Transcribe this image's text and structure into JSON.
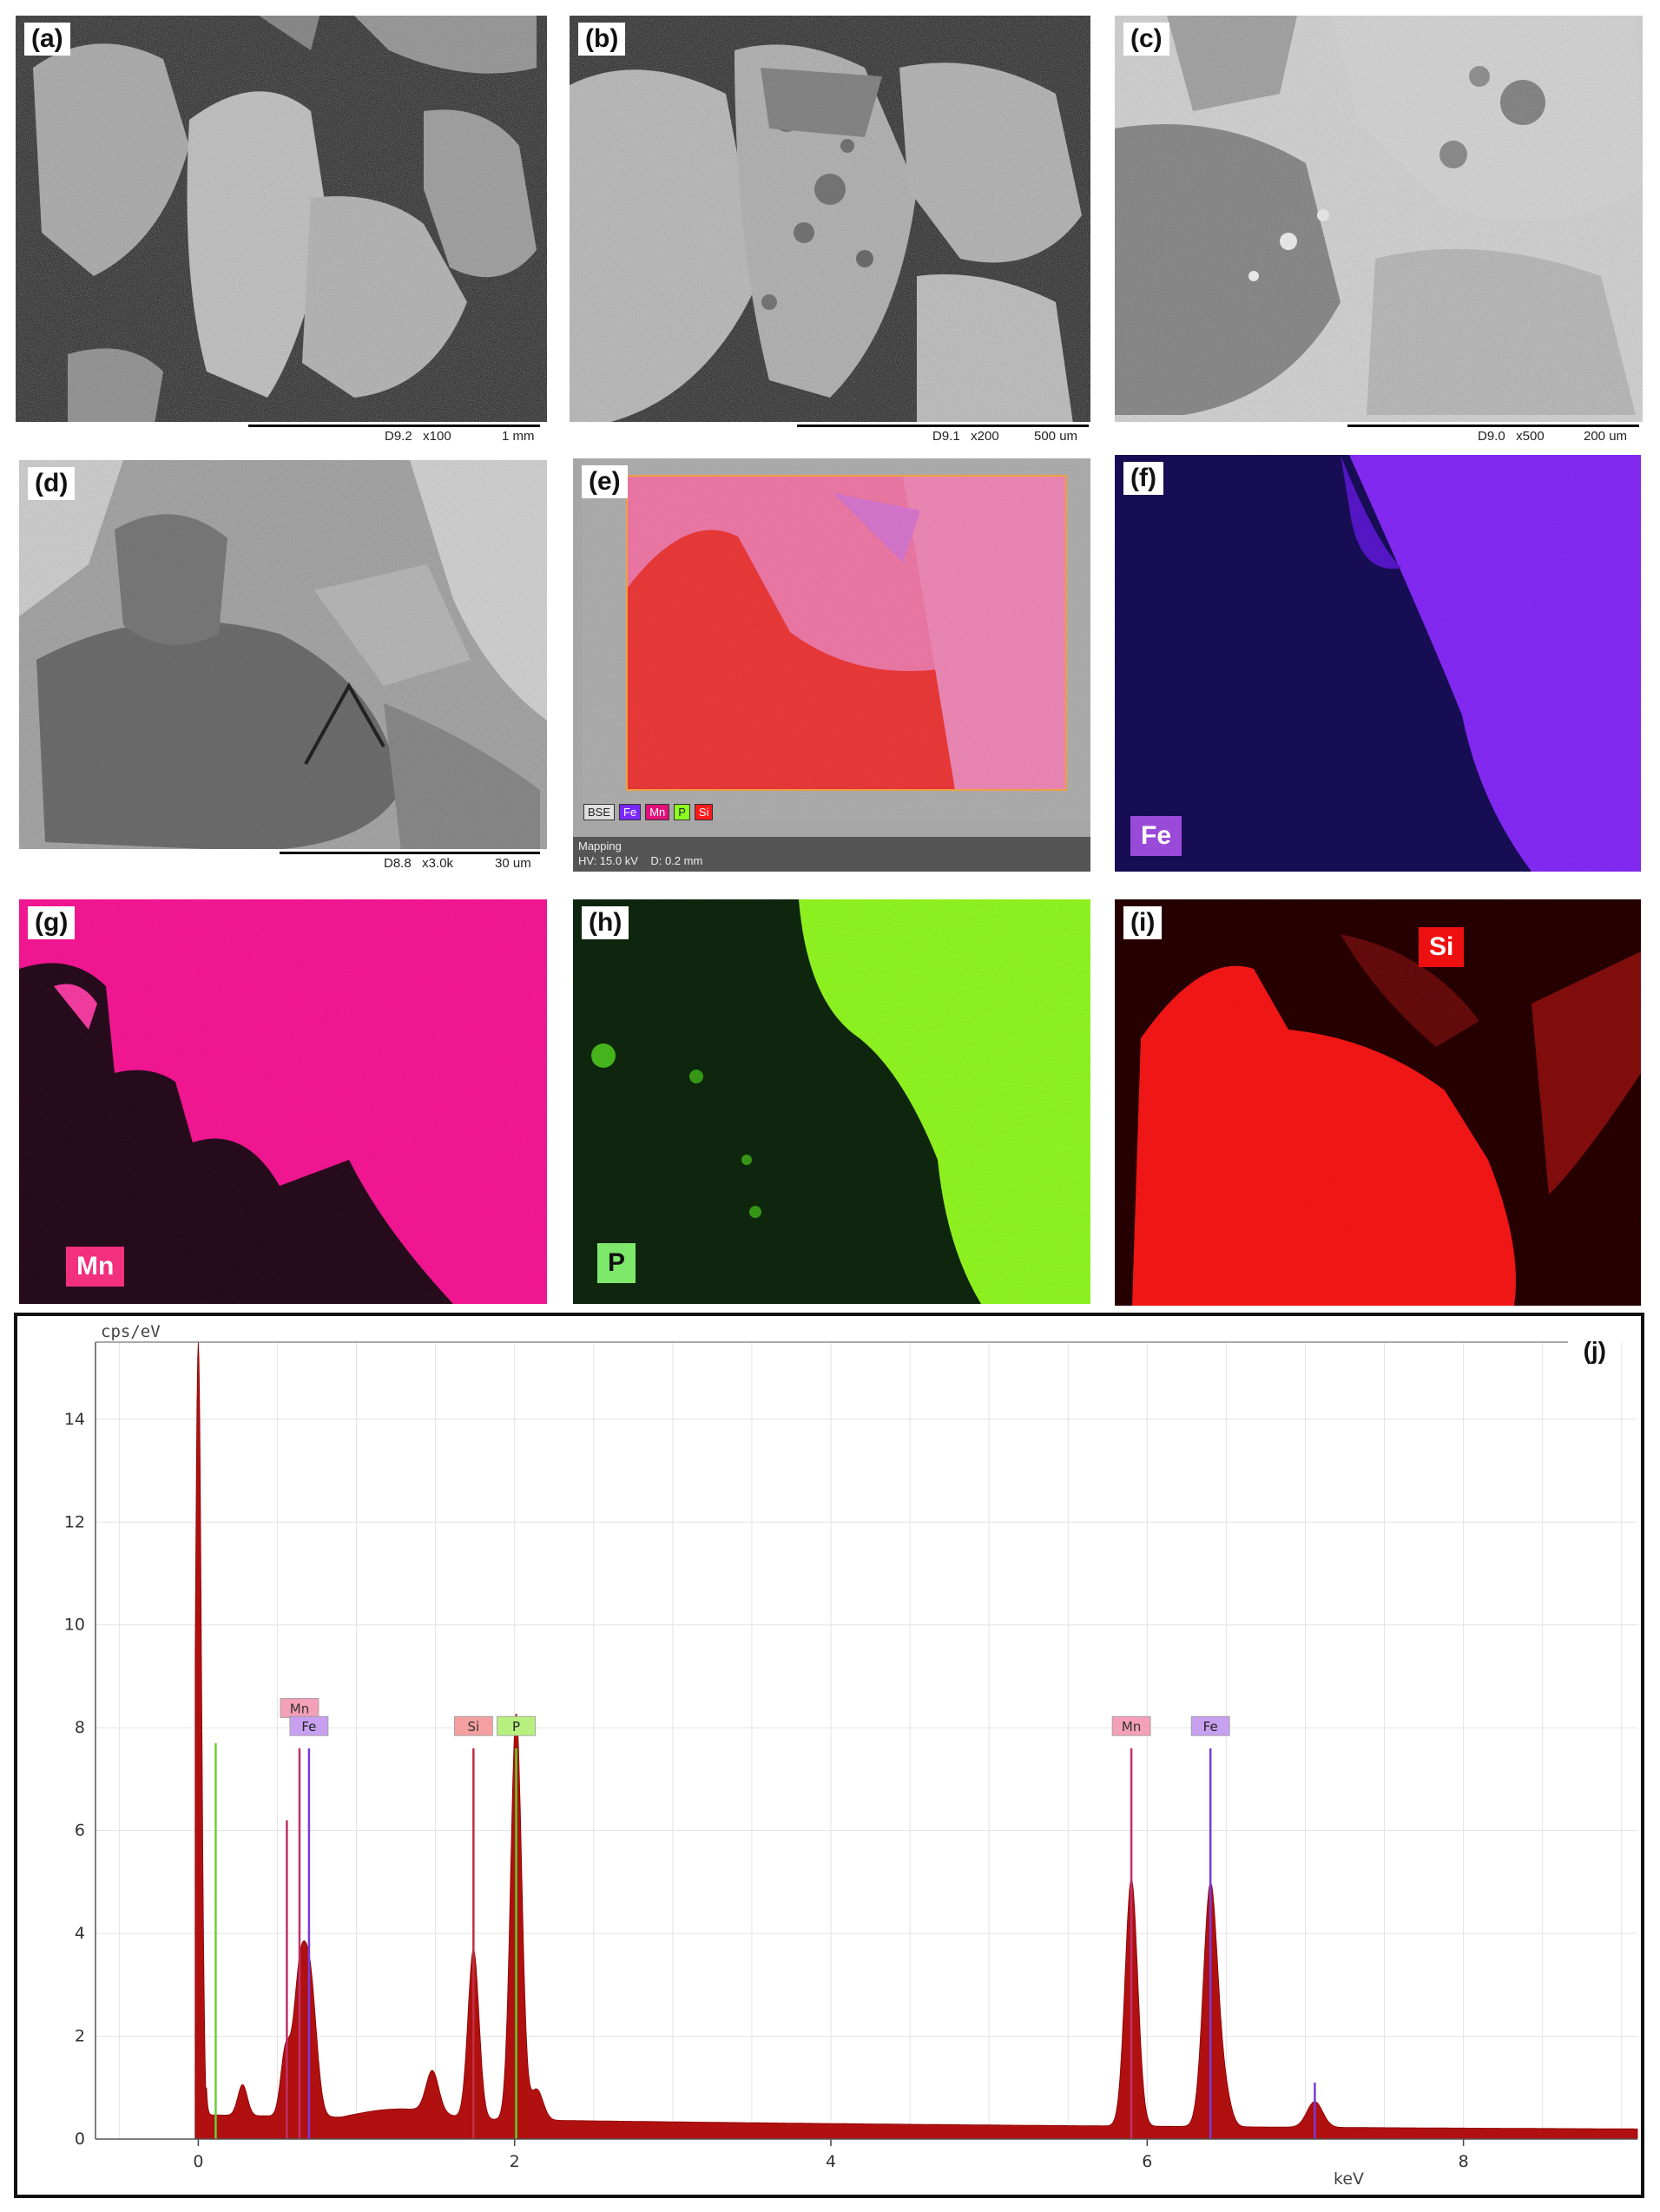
{
  "panels": {
    "a": {
      "label": "(a)",
      "scale_text": "D9.2   x100",
      "scale_len": "1 mm"
    },
    "b": {
      "label": "(b)",
      "scale_text": "D9.1   x200",
      "scale_len": "500 um"
    },
    "c": {
      "label": "(c)",
      "scale_text": "D9.0   x500",
      "scale_len": "200 um"
    },
    "d": {
      "label": "(d)",
      "scale_text": "D8.8   x3.0k",
      "scale_len": "30 um"
    },
    "e": {
      "label": "(e)",
      "legend": [
        "BSE",
        "Fe",
        "Mn",
        "P",
        "Si"
      ],
      "mapping": "Mapping",
      "params": "HV: 15.0 kV    D: 0.2 mm"
    },
    "f": {
      "label": "(f)",
      "element": "Fe",
      "color": "#7a28ff"
    },
    "g": {
      "label": "(g)",
      "element": "Mn",
      "color": "#ff1493"
    },
    "h": {
      "label": "(h)",
      "element": "P",
      "color": "#8cff1e"
    },
    "i": {
      "label": "(i)",
      "element": "Si",
      "color": "#ff1a1a"
    },
    "j": {
      "label": "(j)"
    }
  },
  "chart_data": {
    "type": "area",
    "ylabel": "cps/eV",
    "xlabel": "keV",
    "xlim": [
      -0.65,
      9.1
    ],
    "ylim": [
      0,
      15.5
    ],
    "xticks": [
      0,
      2,
      4,
      6,
      8
    ],
    "yticks": [
      0,
      2,
      4,
      6,
      8,
      10,
      12,
      14
    ],
    "grid": true,
    "series_color": "#b01010",
    "peaks": [
      {
        "x": 0.0,
        "y": 15.5,
        "w": 0.02
      },
      {
        "x": 0.28,
        "y": 0.6,
        "w": 0.03
      },
      {
        "x": 0.55,
        "y": 1.2,
        "w": 0.03
      },
      {
        "x": 0.64,
        "y": 2.6,
        "w": 0.04
      },
      {
        "x": 0.71,
        "y": 2.4,
        "w": 0.04
      },
      {
        "x": 1.48,
        "y": 0.8,
        "w": 0.04
      },
      {
        "x": 1.74,
        "y": 3.3,
        "w": 0.035
      },
      {
        "x": 2.01,
        "y": 7.9,
        "w": 0.035
      },
      {
        "x": 2.14,
        "y": 0.6,
        "w": 0.04
      },
      {
        "x": 5.9,
        "y": 4.8,
        "w": 0.04
      },
      {
        "x": 6.49,
        "y": 0.6,
        "w": 0.04
      },
      {
        "x": 6.4,
        "y": 4.7,
        "w": 0.045
      },
      {
        "x": 7.06,
        "y": 0.5,
        "w": 0.05
      }
    ],
    "markers": [
      {
        "element": "Mn",
        "x": 0.56,
        "h": 6.2,
        "color": "#c0306a",
        "labeled": false
      },
      {
        "element": "Mn",
        "x": 0.64,
        "h": 7.6,
        "color": "#c0306a",
        "labeled": true,
        "label_y": 8.35
      },
      {
        "element": "Fe",
        "x": 0.7,
        "h": 7.6,
        "color": "#7a3ad8",
        "labeled": true,
        "label_y": 8.0
      },
      {
        "element": "Si",
        "x": 1.74,
        "h": 7.6,
        "color": "#c03040",
        "labeled": true,
        "label_y": 8.0
      },
      {
        "element": "P",
        "x": 2.01,
        "h": 7.6,
        "color": "#5fcf2a",
        "labeled": true,
        "label_y": 8.0
      },
      {
        "element": "Mn",
        "x": 5.9,
        "h": 7.6,
        "color": "#c0306a",
        "labeled": true,
        "label_y": 8.0
      },
      {
        "element": "Fe",
        "x": 6.4,
        "h": 7.6,
        "color": "#7a3ad8",
        "labeled": true,
        "label_y": 8.0
      },
      {
        "element": "",
        "x": 0.11,
        "h": 7.7,
        "color": "#6ad03a",
        "labeled": false
      },
      {
        "element": "",
        "x": 7.06,
        "h": 1.1,
        "color": "#7a3ad8",
        "labeled": false
      }
    ]
  }
}
